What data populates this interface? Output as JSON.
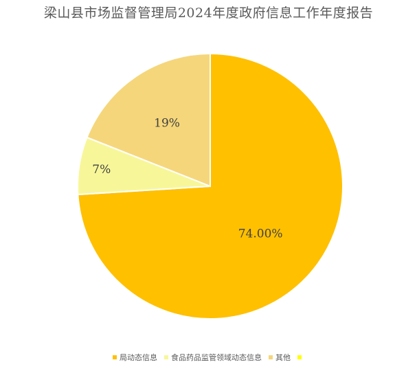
{
  "chart_data": {
    "type": "pie",
    "title": "梁山县市场监督管理局2024年度政府信息工作年度报告",
    "slices": [
      {
        "name": "局动态信息",
        "value": 74,
        "label": "74.00%",
        "color": "#FFC000"
      },
      {
        "name": "食品药品监管领域动态信息",
        "value": 7,
        "label": "7%",
        "color": "#F7F79A"
      },
      {
        "name": "其他",
        "value": 19,
        "label": "19%",
        "color": "#F5D67A"
      },
      {
        "name": "",
        "value": 0,
        "label": "",
        "color": "#FFFF00"
      }
    ],
    "legend_position": "bottom"
  }
}
